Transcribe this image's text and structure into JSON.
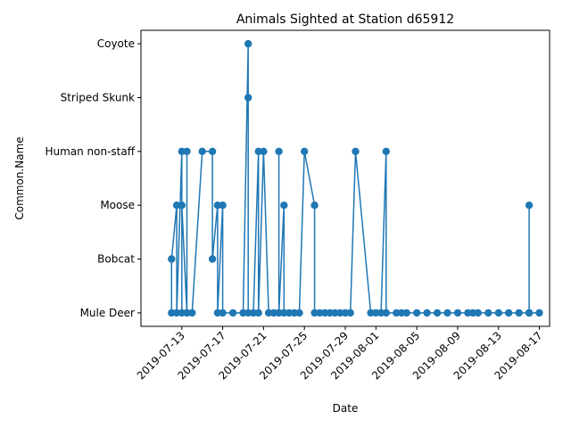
{
  "chart_data": {
    "type": "line",
    "title": "Animals Sighted at Station d65912",
    "xlabel": "Date",
    "ylabel": "Common.Name",
    "categories": [
      "Mule Deer",
      "Bobcat",
      "Moose",
      "Human non-staff",
      "Striped Skunk",
      "Coyote"
    ],
    "xlim": [
      "2019-07-09",
      "2019-08-18"
    ],
    "x_ticks": [
      "2019-07-13",
      "2019-07-17",
      "2019-07-21",
      "2019-07-25",
      "2019-07-29",
      "2019-08-01",
      "2019-08-05",
      "2019-08-09",
      "2019-08-13",
      "2019-08-17"
    ],
    "grid": false,
    "marker": "circle",
    "line_color": "#1f77b4",
    "series": [
      {
        "points": [
          [
            "2019-07-12 00:00",
            "Mule Deer"
          ],
          [
            "2019-07-12 00:00",
            "Bobcat"
          ],
          [
            "2019-07-12 12:00",
            "Moose"
          ],
          [
            "2019-07-12 12:00",
            "Mule Deer"
          ],
          [
            "2019-07-13 00:00",
            "Human non-staff"
          ],
          [
            "2019-07-13 00:00",
            "Mule Deer"
          ],
          [
            "2019-07-13 00:00",
            "Moose"
          ],
          [
            "2019-07-13 12:00",
            "Mule Deer"
          ],
          [
            "2019-07-13 12:00",
            "Human non-staff"
          ],
          [
            "2019-07-13 12:00",
            "Mule Deer"
          ],
          [
            "2019-07-14 00:00",
            "Mule Deer"
          ],
          [
            "2019-07-15 00:00",
            "Human non-staff"
          ],
          [
            "2019-07-16 00:00",
            "Human non-staff"
          ],
          [
            "2019-07-16 00:00",
            "Bobcat"
          ],
          [
            "2019-07-16 12:00",
            "Moose"
          ],
          [
            "2019-07-16 12:00",
            "Mule Deer"
          ],
          [
            "2019-07-17 00:00",
            "Moose"
          ],
          [
            "2019-07-17 00:00",
            "Mule Deer"
          ],
          [
            "2019-07-18 00:00",
            "Mule Deer"
          ],
          [
            "2019-07-19 00:00",
            "Mule Deer"
          ],
          [
            "2019-07-19 12:00",
            "Coyote"
          ],
          [
            "2019-07-19 12:00",
            "Striped Skunk"
          ],
          [
            "2019-07-19 12:00",
            "Mule Deer"
          ],
          [
            "2019-07-20 00:00",
            "Mule Deer"
          ],
          [
            "2019-07-20 12:00",
            "Human non-staff"
          ],
          [
            "2019-07-20 12:00",
            "Mule Deer"
          ],
          [
            "2019-07-21 00:00",
            "Human non-staff"
          ],
          [
            "2019-07-21 12:00",
            "Mule Deer"
          ],
          [
            "2019-07-22 00:00",
            "Mule Deer"
          ],
          [
            "2019-07-22 12:00",
            "Mule Deer"
          ],
          [
            "2019-07-22 12:00",
            "Human non-staff"
          ],
          [
            "2019-07-22 12:00",
            "Mule Deer"
          ],
          [
            "2019-07-23 00:00",
            "Moose"
          ],
          [
            "2019-07-23 00:00",
            "Mule Deer"
          ],
          [
            "2019-07-23 12:00",
            "Mule Deer"
          ],
          [
            "2019-07-24 00:00",
            "Mule Deer"
          ],
          [
            "2019-07-24 12:00",
            "Mule Deer"
          ],
          [
            "2019-07-25 00:00",
            "Human non-staff"
          ],
          [
            "2019-07-26 00:00",
            "Moose"
          ],
          [
            "2019-07-26 00:00",
            "Mule Deer"
          ],
          [
            "2019-07-26 12:00",
            "Mule Deer"
          ],
          [
            "2019-07-27 00:00",
            "Mule Deer"
          ],
          [
            "2019-07-27 12:00",
            "Mule Deer"
          ],
          [
            "2019-07-28 00:00",
            "Mule Deer"
          ],
          [
            "2019-07-28 12:00",
            "Mule Deer"
          ],
          [
            "2019-07-29 00:00",
            "Mule Deer"
          ],
          [
            "2019-07-29 12:00",
            "Mule Deer"
          ],
          [
            "2019-07-30 00:00",
            "Human non-staff"
          ],
          [
            "2019-07-31 12:00",
            "Mule Deer"
          ],
          [
            "2019-08-01 00:00",
            "Mule Deer"
          ],
          [
            "2019-08-01 12:00",
            "Mule Deer"
          ],
          [
            "2019-08-02 00:00",
            "Human non-staff"
          ],
          [
            "2019-08-02 00:00",
            "Mule Deer"
          ],
          [
            "2019-08-03 00:00",
            "Mule Deer"
          ],
          [
            "2019-08-03 12:00",
            "Mule Deer"
          ],
          [
            "2019-08-04 00:00",
            "Mule Deer"
          ],
          [
            "2019-08-05 00:00",
            "Mule Deer"
          ],
          [
            "2019-08-06 00:00",
            "Mule Deer"
          ],
          [
            "2019-08-07 00:00",
            "Mule Deer"
          ],
          [
            "2019-08-08 00:00",
            "Mule Deer"
          ],
          [
            "2019-08-09 00:00",
            "Mule Deer"
          ],
          [
            "2019-08-10 00:00",
            "Mule Deer"
          ],
          [
            "2019-08-10 12:00",
            "Mule Deer"
          ],
          [
            "2019-08-11 00:00",
            "Mule Deer"
          ],
          [
            "2019-08-12 00:00",
            "Mule Deer"
          ],
          [
            "2019-08-13 00:00",
            "Mule Deer"
          ],
          [
            "2019-08-14 00:00",
            "Mule Deer"
          ],
          [
            "2019-08-15 00:00",
            "Mule Deer"
          ],
          [
            "2019-08-16 00:00",
            "Mule Deer"
          ],
          [
            "2019-08-16 00:00",
            "Moose"
          ],
          [
            "2019-08-16 00:00",
            "Mule Deer"
          ],
          [
            "2019-08-17 00:00",
            "Mule Deer"
          ]
        ]
      }
    ]
  }
}
